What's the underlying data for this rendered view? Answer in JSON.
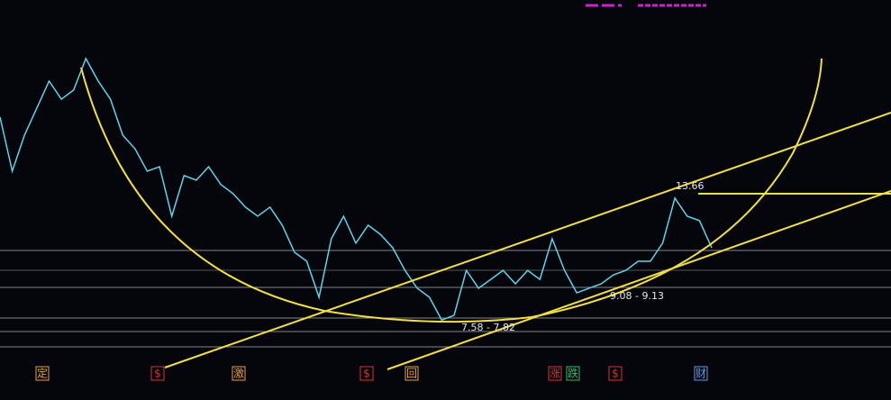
{
  "chart_data": {
    "type": "line",
    "values": [
      17.3,
      14.73,
      16.44,
      17.73,
      19.01,
      18.15,
      18.58,
      20.08,
      19.01,
      18.15,
      16.44,
      15.8,
      14.73,
      14.94,
      12.59,
      14.52,
      14.3,
      14.94,
      14.09,
      13.66,
      13.02,
      12.59,
      13.02,
      12.16,
      10.88,
      10.45,
      8.74,
      11.52,
      12.59,
      11.31,
      12.16,
      11.73,
      11.09,
      10.02,
      9.17,
      8.74,
      7.66,
      7.88,
      10.02,
      9.17,
      9.59,
      10.02,
      9.38,
      10.02,
      9.59,
      11.52,
      10.02,
      8.95,
      9.17,
      9.38,
      9.81,
      10.02,
      10.45,
      10.45,
      11.31,
      13.45,
      12.59,
      12.38,
      11.09
    ],
    "color": "#5fd4e8",
    "ylim": [
      3.86,
      22.86
    ],
    "annotations": [
      "13.66",
      "7.58 - 7.82",
      "9.08 - 9.13"
    ],
    "markers": [
      "定",
      "$",
      "激",
      "$",
      "回",
      "涨",
      "跌",
      "$",
      "财"
    ]
  }
}
